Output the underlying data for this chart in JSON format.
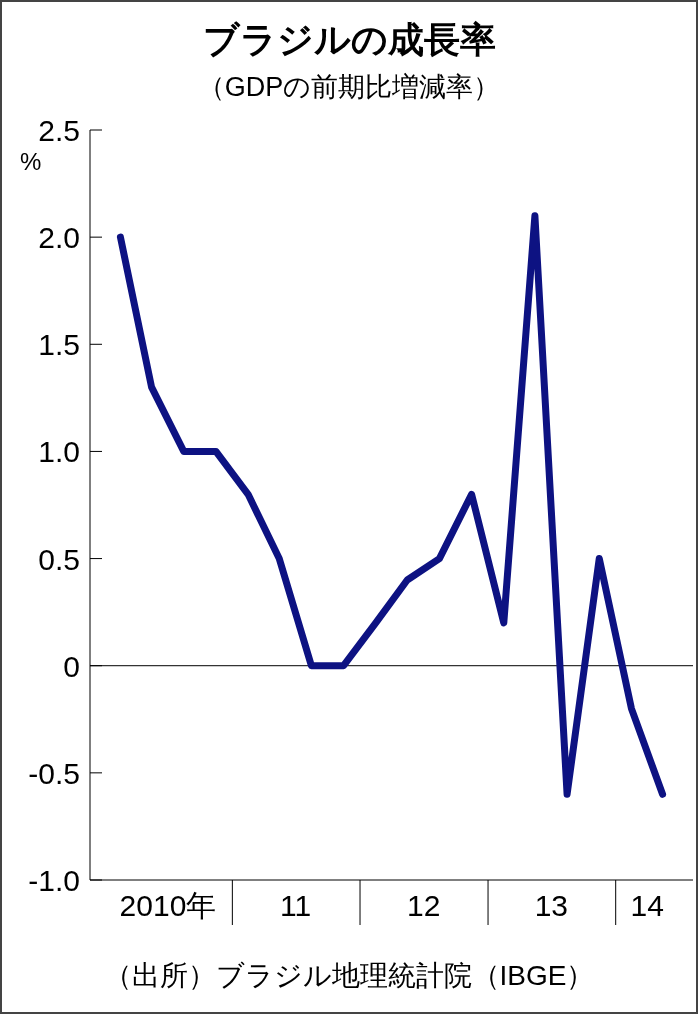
{
  "chart_data": {
    "type": "line",
    "title": "ブラジルの成長率",
    "subtitle": "（GDPの前期比増減率）",
    "ylabel": "%",
    "x": [
      "2010-02-15",
      "2010-05-15",
      "2010-08-15",
      "2010-11-15",
      "2011-02-15",
      "2011-05-15",
      "2011-08-15",
      "2011-11-15",
      "2012-02-15",
      "2012-05-15",
      "2012-08-15",
      "2012-11-15",
      "2013-02-15",
      "2013-05-15",
      "2013-08-15",
      "2013-11-15",
      "2014-02-15",
      "2014-05-15"
    ],
    "series": [
      {
        "color": "#0d1282",
        "values": [
          2.0,
          1.3,
          1.0,
          1.0,
          0.8,
          0.5,
          0,
          0,
          0.2,
          0.4,
          0.5,
          0.8,
          0.2,
          2.1,
          -0.6,
          0.5,
          -0.2,
          -0.6
        ]
      }
    ],
    "xlim": [
      "2009-11-20",
      "2014-08-10"
    ],
    "xticks": [
      {
        "value": "2010-07-01",
        "label": "2010年"
      },
      {
        "value": "2011-01-01",
        "label": null
      },
      {
        "value": "2011-07-01",
        "label": "11"
      },
      {
        "value": "2012-01-01",
        "label": null
      },
      {
        "value": "2012-07-01",
        "label": "12"
      },
      {
        "value": "2013-01-01",
        "label": null
      },
      {
        "value": "2013-07-01",
        "label": "13"
      },
      {
        "value": "2014-01-01",
        "label": null
      },
      {
        "value": "2014-04-01",
        "label": "14"
      }
    ],
    "ylim": [
      -1,
      2.5
    ],
    "yticks": [
      {
        "value": -1,
        "label": "-1.0"
      },
      {
        "value": -0.5,
        "label": "-0.5"
      },
      0,
      {
        "value": 0.5,
        "label": "0.5"
      },
      {
        "value": 1,
        "label": "1.0"
      },
      {
        "value": 1.5,
        "label": "1.5"
      },
      {
        "value": 2,
        "label": "2.0"
      },
      {
        "value": 2.5,
        "label": "2.5"
      }
    ],
    "ref_lines": [
      {
        "axis": "y",
        "value": 0,
        "color": "#000000"
      }
    ],
    "grid": false,
    "marker": "none",
    "line_style": "solid",
    "annotations": [
      "（出所）ブラジル地理統計院（IBGE）"
    ]
  }
}
